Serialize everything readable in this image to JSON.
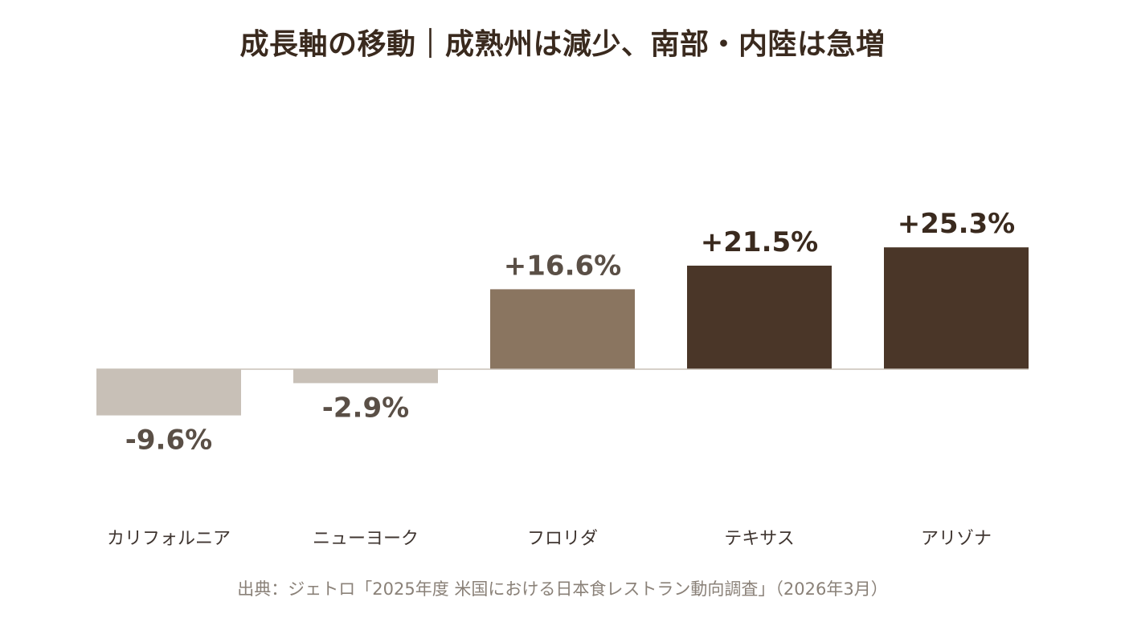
{
  "chart_data": {
    "type": "bar",
    "title": "成長軸の移動｜成熟州は減少、南部・内陸は急増",
    "categories": [
      "カリフォルニア",
      "ニューヨーク",
      "フロリダ",
      "テキサス",
      "アリゾナ"
    ],
    "values": [
      -9.6,
      -2.9,
      16.6,
      21.5,
      25.3
    ],
    "value_labels": [
      "-9.6%",
      "-2.9%",
      "+16.6%",
      "+21.5%",
      "+25.3%"
    ],
    "colors": [
      "#c8c0b7",
      "#c8c0b7",
      "#8a7560",
      "#4a3628",
      "#4a3628"
    ],
    "label_colors": [
      "#5a4f46",
      "#5a4f46",
      "#5a4f46",
      "#3a2a1e",
      "#3a2a1e"
    ],
    "baseline_color": "#c8c0b7",
    "ylim": [
      -20,
      40
    ],
    "grid": false,
    "legend": "none"
  },
  "source": "出典：ジェトロ「2025年度 米国における日本食レストラン動向調査」（2026年3月）"
}
